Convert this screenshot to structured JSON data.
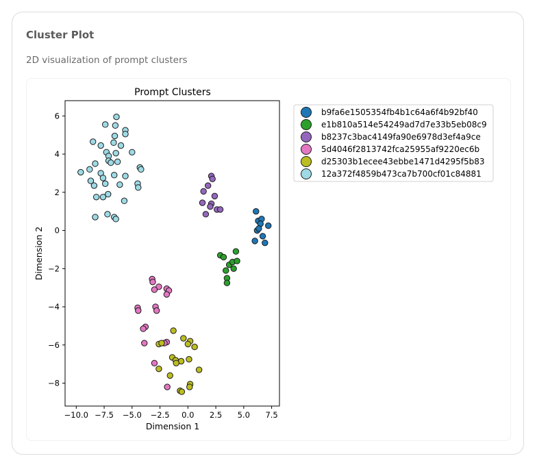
{
  "card": {
    "title": "Cluster Plot",
    "subtitle": "2D visualization of prompt clusters"
  },
  "chart_data": {
    "type": "scatter",
    "title": "Prompt Clusters",
    "xlabel": "Dimension 1",
    "ylabel": "Dimension 2",
    "xlim": [
      -11.0,
      8.2
    ],
    "ylim": [
      -9.2,
      6.8
    ],
    "xticks": [
      -10.0,
      -7.5,
      -5.0,
      -2.5,
      0.0,
      2.5,
      5.0,
      7.5
    ],
    "xtick_labels": [
      "−10.0",
      "−7.5",
      "−5.0",
      "−2.5",
      "0.0",
      "2.5",
      "5.0",
      "7.5"
    ],
    "yticks": [
      -8,
      -6,
      -4,
      -2,
      0,
      2,
      4,
      6
    ],
    "ytick_labels": [
      "−8",
      "−6",
      "−4",
      "−2",
      "0",
      "2",
      "4",
      "6"
    ],
    "grid": false,
    "legend_position": "outside-right",
    "series": [
      {
        "name": "b9fa6e1505354fb4b1c64a6f4b92bf40",
        "color": "#1f77b4",
        "points": [
          [
            6.1,
            1.0
          ],
          [
            6.3,
            0.5
          ],
          [
            6.6,
            0.6
          ],
          [
            6.5,
            0.35
          ],
          [
            6.0,
            -0.55
          ],
          [
            6.2,
            0.0
          ],
          [
            6.7,
            -0.3
          ],
          [
            6.9,
            -0.65
          ],
          [
            7.2,
            0.25
          ],
          [
            6.35,
            0.1
          ]
        ]
      },
      {
        "name": "e1b810a514e54249ad7d7e33b5eb08c9",
        "color": "#2ca02c",
        "points": [
          [
            2.9,
            -1.3
          ],
          [
            3.2,
            -1.4
          ],
          [
            4.3,
            -1.1
          ],
          [
            3.7,
            -1.8
          ],
          [
            4.0,
            -1.65
          ],
          [
            4.4,
            -1.6
          ],
          [
            3.4,
            -2.1
          ],
          [
            4.1,
            -2.0
          ],
          [
            3.5,
            -2.5
          ],
          [
            3.5,
            -2.75
          ]
        ]
      },
      {
        "name": "b8237c3bac4149fa90e6978d3ef4a9ce",
        "color": "#9467bd",
        "points": [
          [
            2.1,
            2.85
          ],
          [
            2.2,
            2.7
          ],
          [
            1.8,
            2.35
          ],
          [
            1.4,
            2.05
          ],
          [
            2.4,
            1.8
          ],
          [
            1.3,
            1.45
          ],
          [
            2.1,
            1.4
          ],
          [
            2.0,
            1.25
          ],
          [
            2.6,
            1.1
          ],
          [
            2.9,
            1.1
          ],
          [
            1.6,
            0.85
          ]
        ]
      },
      {
        "name": "5d4046f2813742fca25955af9220ec6b",
        "color": "#e377c2",
        "points": [
          [
            -3.2,
            -2.55
          ],
          [
            -3.15,
            -2.7
          ],
          [
            -2.6,
            -2.95
          ],
          [
            -3.0,
            -3.1
          ],
          [
            -1.9,
            -3.05
          ],
          [
            -1.7,
            -3.15
          ],
          [
            -1.9,
            -3.35
          ],
          [
            -2.9,
            -4.0
          ],
          [
            -2.8,
            -4.2
          ],
          [
            -4.5,
            -4.05
          ],
          [
            -4.45,
            -4.2
          ],
          [
            -3.8,
            -5.05
          ],
          [
            -4.0,
            -5.15
          ],
          [
            -3.9,
            -5.9
          ],
          [
            -1.9,
            -5.85
          ],
          [
            -2.1,
            -5.9
          ],
          [
            -3.0,
            -6.95
          ],
          [
            -1.85,
            -8.2
          ]
        ]
      },
      {
        "name": "d25303b1ecee43ebbe1471d4295f5b83",
        "color": "#bcbd22",
        "points": [
          [
            -1.3,
            -5.25
          ],
          [
            -0.4,
            -5.65
          ],
          [
            0.2,
            -5.8
          ],
          [
            0.0,
            -5.95
          ],
          [
            -2.6,
            -5.95
          ],
          [
            -2.35,
            -5.9
          ],
          [
            0.6,
            -6.1
          ],
          [
            -1.4,
            -6.65
          ],
          [
            -1.1,
            -6.8
          ],
          [
            -0.6,
            -6.85
          ],
          [
            -1.05,
            -6.95
          ],
          [
            0.1,
            -6.75
          ],
          [
            -2.6,
            -7.25
          ],
          [
            1.0,
            -7.3
          ],
          [
            -1.6,
            -7.6
          ],
          [
            0.2,
            -8.05
          ],
          [
            0.15,
            -8.2
          ],
          [
            -0.7,
            -8.4
          ],
          [
            -0.55,
            -8.45
          ]
        ]
      },
      {
        "name": "12a372f4859b473ca7b700cf01c84881",
        "color": "#9edae5",
        "points": [
          [
            -6.4,
            5.95
          ],
          [
            -7.4,
            5.55
          ],
          [
            -6.5,
            5.5
          ],
          [
            -5.6,
            5.25
          ],
          [
            -5.6,
            5.05
          ],
          [
            -6.55,
            4.95
          ],
          [
            -8.5,
            4.65
          ],
          [
            -6.65,
            4.6
          ],
          [
            -7.8,
            4.45
          ],
          [
            -6.0,
            4.45
          ],
          [
            -5.0,
            4.1
          ],
          [
            -7.3,
            4.1
          ],
          [
            -7.1,
            3.9
          ],
          [
            -6.45,
            4.05
          ],
          [
            -7.1,
            3.65
          ],
          [
            -6.9,
            3.55
          ],
          [
            -6.3,
            3.6
          ],
          [
            -8.3,
            3.5
          ],
          [
            -4.3,
            3.3
          ],
          [
            -4.2,
            3.2
          ],
          [
            -8.8,
            3.2
          ],
          [
            -9.6,
            3.05
          ],
          [
            -7.8,
            3.0
          ],
          [
            -6.6,
            2.9
          ],
          [
            -5.6,
            2.85
          ],
          [
            -7.6,
            2.75
          ],
          [
            -8.7,
            2.6
          ],
          [
            -7.4,
            2.45
          ],
          [
            -6.1,
            2.4
          ],
          [
            -4.5,
            2.45
          ],
          [
            -4.45,
            2.25
          ],
          [
            -8.4,
            2.35
          ],
          [
            -7.15,
            1.9
          ],
          [
            -8.2,
            1.75
          ],
          [
            -7.6,
            1.75
          ],
          [
            -5.7,
            1.55
          ],
          [
            -7.2,
            0.85
          ],
          [
            -6.6,
            0.7
          ],
          [
            -8.3,
            0.7
          ],
          [
            -6.45,
            0.6
          ]
        ]
      }
    ]
  }
}
